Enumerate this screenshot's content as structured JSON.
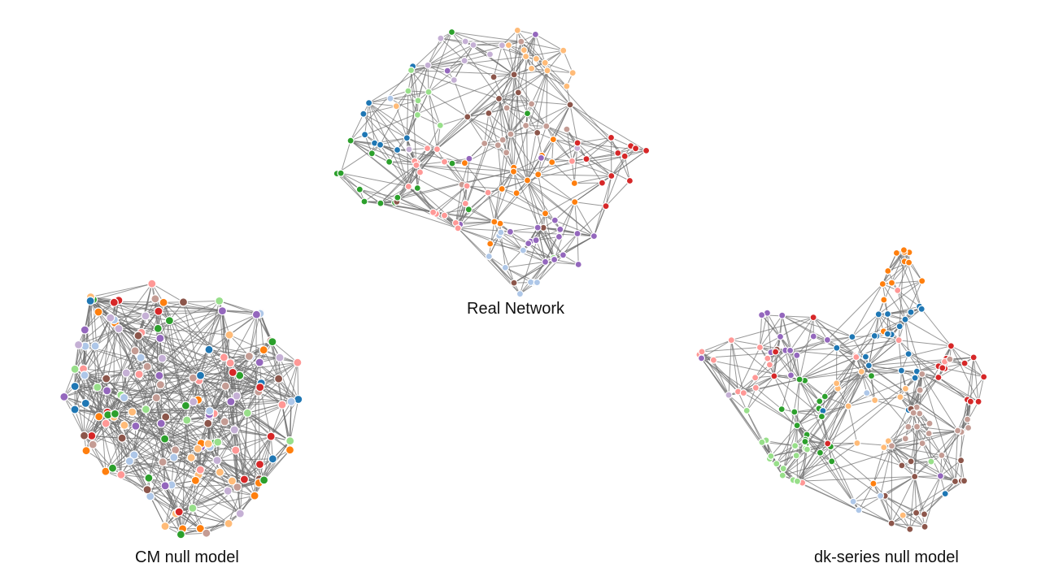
{
  "panels": [
    {
      "id": "real",
      "caption": "Real Network"
    },
    {
      "id": "cm",
      "caption": "CM null model"
    },
    {
      "id": "dk",
      "caption": "dk-series null model"
    }
  ],
  "colors": {
    "edge": "#6e6e6e",
    "node_palette": [
      "#d62728",
      "#1f77b4",
      "#2ca02c",
      "#ff7f0e",
      "#9467bd",
      "#8c564b",
      "#ff9896",
      "#aec7e8",
      "#98df8a",
      "#ffbb78",
      "#c5b0d5",
      "#c49c94"
    ]
  }
}
